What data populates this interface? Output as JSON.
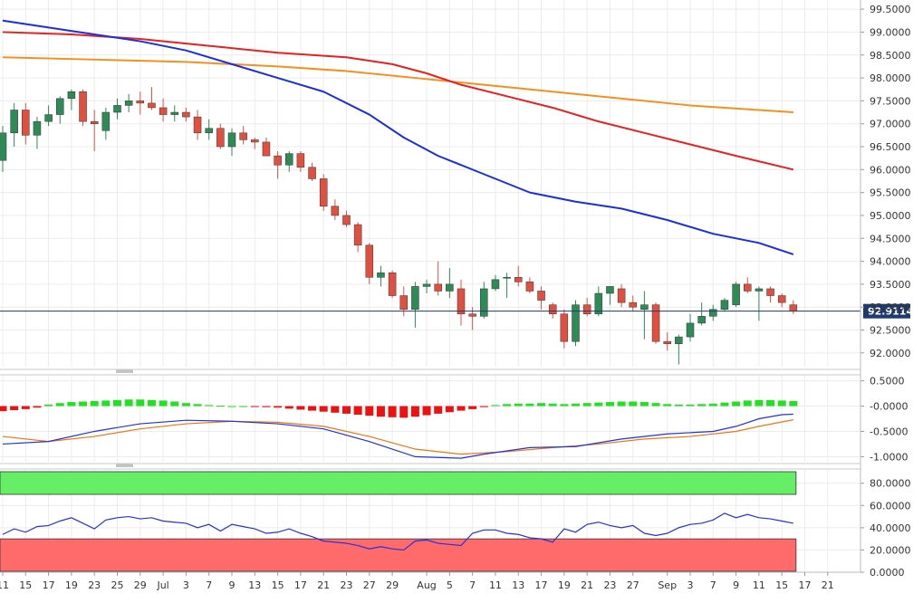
{
  "chart_data": [
    {
      "type": "candlestick",
      "panel": "price",
      "last_price_label": "92.9114",
      "last_price": 92.9114,
      "ylim": [
        91.7,
        99.7
      ],
      "y_ticks": [
        "99.5000",
        "99.0000",
        "98.5000",
        "98.0000",
        "97.5000",
        "97.0000",
        "96.5000",
        "96.0000",
        "95.5000",
        "95.0000",
        "94.5000",
        "94.0000",
        "93.5000",
        "93.0000",
        "92.5000",
        "92.0000"
      ],
      "y_tick_values": [
        99.5,
        99.0,
        98.5,
        98.0,
        97.5,
        97.0,
        96.5,
        96.0,
        95.5,
        95.0,
        94.5,
        94.0,
        93.5,
        93.0,
        92.5,
        92.0
      ],
      "x_ticks": [
        "11",
        "15",
        "17",
        "19",
        "23",
        "25",
        "29",
        "Jul",
        "3",
        "7",
        "9",
        "13",
        "15",
        "17",
        "21",
        "23",
        "27",
        "29",
        "Aug",
        "5",
        "7",
        "11",
        "13",
        "17",
        "19",
        "21",
        "23",
        "27",
        "Sep",
        "3",
        "7",
        "9",
        "11",
        "15",
        "17",
        "21"
      ],
      "x_tick_index": [
        0,
        2,
        4,
        6,
        8,
        10,
        12,
        14,
        16,
        18,
        20,
        22,
        24,
        26,
        28,
        30,
        32,
        34,
        37,
        39,
        41,
        43,
        45,
        47,
        49,
        51,
        53,
        55,
        58,
        60,
        62,
        64,
        66,
        68,
        70,
        72
      ],
      "colors": {
        "up": "#2e8b57",
        "down": "#e05040",
        "sma_fast": "#1a2fe0",
        "sma_mid": "#e82020",
        "sma_slow": "#f5901e"
      },
      "candles": [
        {
          "o": 96.2,
          "h": 96.95,
          "l": 95.95,
          "c": 96.8
        },
        {
          "o": 96.8,
          "h": 97.45,
          "l": 96.5,
          "c": 97.3
        },
        {
          "o": 97.3,
          "h": 97.45,
          "l": 96.55,
          "c": 96.75
        },
        {
          "o": 96.75,
          "h": 97.15,
          "l": 96.45,
          "c": 97.05
        },
        {
          "o": 97.05,
          "h": 97.4,
          "l": 96.95,
          "c": 97.2
        },
        {
          "o": 97.2,
          "h": 97.6,
          "l": 97.0,
          "c": 97.55
        },
        {
          "o": 97.55,
          "h": 97.75,
          "l": 97.3,
          "c": 97.7
        },
        {
          "o": 97.7,
          "h": 97.75,
          "l": 96.95,
          "c": 97.05
        },
        {
          "o": 97.05,
          "h": 97.3,
          "l": 96.4,
          "c": 97.0
        },
        {
          "o": 96.85,
          "h": 97.35,
          "l": 96.65,
          "c": 97.25
        },
        {
          "o": 97.25,
          "h": 97.55,
          "l": 97.1,
          "c": 97.4
        },
        {
          "o": 97.4,
          "h": 97.65,
          "l": 97.25,
          "c": 97.5
        },
        {
          "o": 97.5,
          "h": 97.7,
          "l": 97.2,
          "c": 97.45
        },
        {
          "o": 97.45,
          "h": 97.8,
          "l": 97.3,
          "c": 97.35
        },
        {
          "o": 97.35,
          "h": 97.55,
          "l": 97.05,
          "c": 97.2
        },
        {
          "o": 97.2,
          "h": 97.4,
          "l": 97.05,
          "c": 97.25
        },
        {
          "o": 97.25,
          "h": 97.35,
          "l": 97.05,
          "c": 97.15
        },
        {
          "o": 97.15,
          "h": 97.3,
          "l": 96.65,
          "c": 96.8
        },
        {
          "o": 96.8,
          "h": 97.1,
          "l": 96.65,
          "c": 96.9
        },
        {
          "o": 96.9,
          "h": 97.0,
          "l": 96.45,
          "c": 96.5
        },
        {
          "o": 96.5,
          "h": 96.9,
          "l": 96.3,
          "c": 96.8
        },
        {
          "o": 96.8,
          "h": 96.95,
          "l": 96.55,
          "c": 96.65
        },
        {
          "o": 96.65,
          "h": 96.7,
          "l": 96.45,
          "c": 96.6
        },
        {
          "o": 96.6,
          "h": 96.7,
          "l": 96.3,
          "c": 96.3
        },
        {
          "o": 96.3,
          "h": 96.4,
          "l": 95.8,
          "c": 96.1
        },
        {
          "o": 96.1,
          "h": 96.4,
          "l": 95.95,
          "c": 96.35
        },
        {
          "o": 96.35,
          "h": 96.4,
          "l": 95.95,
          "c": 96.05
        },
        {
          "o": 96.05,
          "h": 96.15,
          "l": 95.75,
          "c": 95.8
        },
        {
          "o": 95.8,
          "h": 95.9,
          "l": 95.1,
          "c": 95.2
        },
        {
          "o": 95.2,
          "h": 95.35,
          "l": 94.9,
          "c": 95.0
        },
        {
          "o": 95.0,
          "h": 95.1,
          "l": 94.75,
          "c": 94.8
        },
        {
          "o": 94.8,
          "h": 94.85,
          "l": 94.2,
          "c": 94.35
        },
        {
          "o": 94.35,
          "h": 94.4,
          "l": 93.5,
          "c": 93.65
        },
        {
          "o": 93.65,
          "h": 93.9,
          "l": 93.45,
          "c": 93.75
        },
        {
          "o": 93.75,
          "h": 93.8,
          "l": 93.2,
          "c": 93.25
        },
        {
          "o": 93.25,
          "h": 93.45,
          "l": 92.8,
          "c": 92.95
        },
        {
          "o": 92.95,
          "h": 93.55,
          "l": 92.55,
          "c": 93.45
        },
        {
          "o": 93.45,
          "h": 93.6,
          "l": 93.3,
          "c": 93.5
        },
        {
          "o": 93.5,
          "h": 94.0,
          "l": 93.25,
          "c": 93.35
        },
        {
          "o": 93.35,
          "h": 93.85,
          "l": 93.2,
          "c": 93.5
        },
        {
          "o": 93.4,
          "h": 93.6,
          "l": 92.6,
          "c": 92.85
        },
        {
          "o": 92.85,
          "h": 93.0,
          "l": 92.5,
          "c": 92.8
        },
        {
          "o": 92.8,
          "h": 93.55,
          "l": 92.75,
          "c": 93.4
        },
        {
          "o": 93.4,
          "h": 93.7,
          "l": 93.35,
          "c": 93.6
        },
        {
          "o": 93.65,
          "h": 93.75,
          "l": 93.2,
          "c": 93.65
        },
        {
          "o": 93.65,
          "h": 93.9,
          "l": 93.45,
          "c": 93.55
        },
        {
          "o": 93.55,
          "h": 93.65,
          "l": 93.3,
          "c": 93.35
        },
        {
          "o": 93.35,
          "h": 93.45,
          "l": 92.95,
          "c": 93.15
        },
        {
          "o": 93.05,
          "h": 93.1,
          "l": 92.75,
          "c": 92.85
        },
        {
          "o": 92.85,
          "h": 92.95,
          "l": 92.1,
          "c": 92.25
        },
        {
          "o": 92.25,
          "h": 93.15,
          "l": 92.15,
          "c": 93.05
        },
        {
          "o": 93.05,
          "h": 93.2,
          "l": 92.8,
          "c": 92.85
        },
        {
          "o": 92.85,
          "h": 93.45,
          "l": 92.8,
          "c": 93.3
        },
        {
          "o": 93.3,
          "h": 93.45,
          "l": 93.05,
          "c": 93.45
        },
        {
          "o": 93.4,
          "h": 93.5,
          "l": 93.0,
          "c": 93.1
        },
        {
          "o": 93.1,
          "h": 93.25,
          "l": 92.9,
          "c": 93.0
        },
        {
          "o": 92.95,
          "h": 93.35,
          "l": 92.3,
          "c": 93.05
        },
        {
          "o": 93.05,
          "h": 93.1,
          "l": 92.2,
          "c": 92.25
        },
        {
          "o": 92.25,
          "h": 92.45,
          "l": 92.05,
          "c": 92.2
        },
        {
          "o": 92.2,
          "h": 92.4,
          "l": 91.75,
          "c": 92.35
        },
        {
          "o": 92.35,
          "h": 92.85,
          "l": 92.25,
          "c": 92.65
        },
        {
          "o": 92.65,
          "h": 93.1,
          "l": 92.6,
          "c": 92.8
        },
        {
          "o": 92.8,
          "h": 93.05,
          "l": 92.7,
          "c": 92.95
        },
        {
          "o": 92.95,
          "h": 93.2,
          "l": 92.9,
          "c": 93.15
        },
        {
          "o": 93.05,
          "h": 93.55,
          "l": 93.0,
          "c": 93.5
        },
        {
          "o": 93.5,
          "h": 93.65,
          "l": 93.3,
          "c": 93.35
        },
        {
          "o": 93.35,
          "h": 93.45,
          "l": 92.7,
          "c": 93.4
        },
        {
          "o": 93.4,
          "h": 93.45,
          "l": 93.1,
          "c": 93.25
        },
        {
          "o": 93.25,
          "h": 93.3,
          "l": 93.0,
          "c": 93.1
        },
        {
          "o": 93.05,
          "h": 93.15,
          "l": 92.85,
          "c": 92.91
        }
      ],
      "sma_fast": [
        [
          0,
          99.25
        ],
        [
          4,
          99.1
        ],
        [
          8,
          98.95
        ],
        [
          12,
          98.8
        ],
        [
          16,
          98.6
        ],
        [
          20,
          98.3
        ],
        [
          24,
          98.0
        ],
        [
          28,
          97.7
        ],
        [
          32,
          97.2
        ],
        [
          35,
          96.7
        ],
        [
          38,
          96.3
        ],
        [
          42,
          95.9
        ],
        [
          46,
          95.5
        ],
        [
          50,
          95.3
        ],
        [
          54,
          95.15
        ],
        [
          58,
          94.9
        ],
        [
          62,
          94.6
        ],
        [
          66,
          94.4
        ],
        [
          69,
          94.15
        ]
      ],
      "sma_mid": [
        [
          0,
          99.0
        ],
        [
          6,
          98.95
        ],
        [
          12,
          98.85
        ],
        [
          18,
          98.7
        ],
        [
          24,
          98.55
        ],
        [
          30,
          98.45
        ],
        [
          34,
          98.3
        ],
        [
          37,
          98.1
        ],
        [
          40,
          97.85
        ],
        [
          44,
          97.6
        ],
        [
          48,
          97.35
        ],
        [
          52,
          97.05
        ],
        [
          56,
          96.8
        ],
        [
          60,
          96.55
        ],
        [
          64,
          96.3
        ],
        [
          69,
          96.0
        ]
      ],
      "sma_slow": [
        [
          0,
          98.45
        ],
        [
          8,
          98.4
        ],
        [
          16,
          98.35
        ],
        [
          24,
          98.25
        ],
        [
          30,
          98.15
        ],
        [
          36,
          98.0
        ],
        [
          42,
          97.85
        ],
        [
          48,
          97.7
        ],
        [
          54,
          97.55
        ],
        [
          60,
          97.4
        ],
        [
          66,
          97.3
        ],
        [
          69,
          97.25
        ]
      ]
    },
    {
      "type": "histogram-with-lines",
      "panel": "macd",
      "ylim": [
        -1.1,
        0.6
      ],
      "y_ticks": [
        "0.5000",
        "-0.0000",
        "-0.5000",
        "-1.0000"
      ],
      "y_tick_values": [
        0.5,
        0.0,
        -0.5,
        -1.0
      ],
      "colors": {
        "pos": "#22e022",
        "neg": "#ee1111",
        "line_fast": "#2233dd",
        "line_slow": "#ee7711"
      },
      "histogram": [
        -0.1,
        -0.08,
        -0.06,
        -0.03,
        0.03,
        0.06,
        0.08,
        0.09,
        0.1,
        0.11,
        0.12,
        0.13,
        0.13,
        0.12,
        0.11,
        0.09,
        0.06,
        0.04,
        0.02,
        0.01,
        0.0,
        0.0,
        -0.01,
        -0.02,
        -0.03,
        -0.05,
        -0.07,
        -0.09,
        -0.11,
        -0.13,
        -0.15,
        -0.17,
        -0.19,
        -0.21,
        -0.22,
        -0.23,
        -0.21,
        -0.18,
        -0.15,
        -0.12,
        -0.09,
        -0.06,
        -0.02,
        0.02,
        0.04,
        0.05,
        0.05,
        0.06,
        0.05,
        0.04,
        0.05,
        0.06,
        0.07,
        0.08,
        0.09,
        0.09,
        0.08,
        0.06,
        0.04,
        0.03,
        0.03,
        0.04,
        0.05,
        0.07,
        0.09,
        0.11,
        0.12,
        0.12,
        0.11,
        0.1
      ],
      "line_fast": [
        [
          0,
          -0.75
        ],
        [
          4,
          -0.7
        ],
        [
          8,
          -0.5
        ],
        [
          12,
          -0.35
        ],
        [
          16,
          -0.28
        ],
        [
          20,
          -0.3
        ],
        [
          24,
          -0.35
        ],
        [
          28,
          -0.45
        ],
        [
          32,
          -0.7
        ],
        [
          36,
          -1.0
        ],
        [
          40,
          -1.03
        ],
        [
          42,
          -0.95
        ],
        [
          46,
          -0.82
        ],
        [
          50,
          -0.8
        ],
        [
          54,
          -0.65
        ],
        [
          58,
          -0.55
        ],
        [
          62,
          -0.5
        ],
        [
          64,
          -0.4
        ],
        [
          66,
          -0.25
        ],
        [
          68,
          -0.17
        ],
        [
          69,
          -0.16
        ]
      ],
      "line_slow": [
        [
          0,
          -0.6
        ],
        [
          4,
          -0.7
        ],
        [
          8,
          -0.6
        ],
        [
          12,
          -0.45
        ],
        [
          16,
          -0.35
        ],
        [
          20,
          -0.3
        ],
        [
          24,
          -0.32
        ],
        [
          28,
          -0.4
        ],
        [
          32,
          -0.6
        ],
        [
          36,
          -0.85
        ],
        [
          40,
          -0.95
        ],
        [
          44,
          -0.9
        ],
        [
          48,
          -0.82
        ],
        [
          52,
          -0.75
        ],
        [
          56,
          -0.65
        ],
        [
          60,
          -0.6
        ],
        [
          64,
          -0.5
        ],
        [
          66,
          -0.4
        ],
        [
          69,
          -0.27
        ]
      ]
    },
    {
      "type": "line",
      "panel": "rsi",
      "ylim": [
        0,
        92
      ],
      "y_ticks": [
        "80.0000",
        "60.0000",
        "40.0000",
        "20.0000",
        "0.0000"
      ],
      "y_tick_values": [
        80,
        60,
        40,
        20,
        0
      ],
      "overbought": 70,
      "oversold": 30,
      "colors": {
        "line": "#2233dd",
        "overbought": "#66ee66",
        "oversold": "#ff6a6a"
      },
      "rsi": [
        [
          0,
          34
        ],
        [
          1,
          39
        ],
        [
          2,
          36
        ],
        [
          3,
          41
        ],
        [
          4,
          42
        ],
        [
          5,
          46
        ],
        [
          6,
          49
        ],
        [
          7,
          44
        ],
        [
          8,
          39
        ],
        [
          9,
          47
        ],
        [
          10,
          49
        ],
        [
          11,
          50
        ],
        [
          12,
          48
        ],
        [
          13,
          49
        ],
        [
          14,
          46
        ],
        [
          15,
          45
        ],
        [
          16,
          44
        ],
        [
          17,
          40
        ],
        [
          18,
          43
        ],
        [
          19,
          37
        ],
        [
          20,
          43
        ],
        [
          21,
          41
        ],
        [
          22,
          39
        ],
        [
          23,
          35
        ],
        [
          24,
          36
        ],
        [
          25,
          39
        ],
        [
          26,
          35
        ],
        [
          27,
          32
        ],
        [
          28,
          28
        ],
        [
          29,
          27
        ],
        [
          30,
          26
        ],
        [
          31,
          24
        ],
        [
          32,
          21
        ],
        [
          33,
          23
        ],
        [
          34,
          21
        ],
        [
          35,
          20
        ],
        [
          36,
          28
        ],
        [
          37,
          29
        ],
        [
          38,
          26
        ],
        [
          39,
          25
        ],
        [
          40,
          24
        ],
        [
          41,
          35
        ],
        [
          42,
          38
        ],
        [
          43,
          38
        ],
        [
          44,
          35
        ],
        [
          45,
          34
        ],
        [
          46,
          31
        ],
        [
          47,
          30
        ],
        [
          48,
          27
        ],
        [
          49,
          39
        ],
        [
          50,
          36
        ],
        [
          51,
          43
        ],
        [
          52,
          45
        ],
        [
          53,
          42
        ],
        [
          54,
          40
        ],
        [
          55,
          42
        ],
        [
          56,
          35
        ],
        [
          57,
          33
        ],
        [
          58,
          35
        ],
        [
          59,
          40
        ],
        [
          60,
          43
        ],
        [
          61,
          44
        ],
        [
          62,
          47
        ],
        [
          63,
          53
        ],
        [
          64,
          49
        ],
        [
          65,
          52
        ],
        [
          66,
          49
        ],
        [
          67,
          48
        ],
        [
          68,
          46
        ],
        [
          69,
          44
        ]
      ]
    }
  ]
}
